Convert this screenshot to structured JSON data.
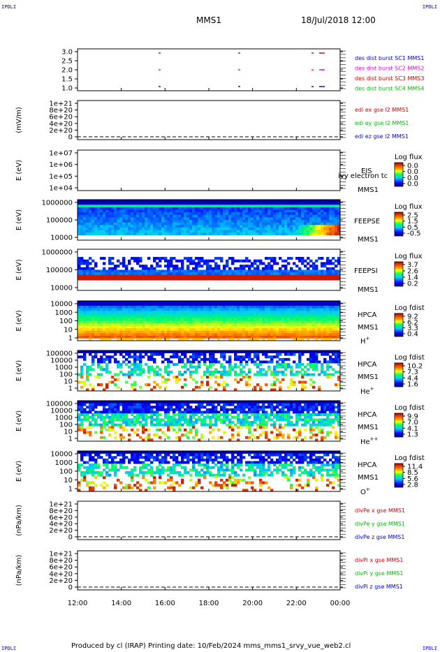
{
  "corner_label": "IPDLI",
  "header": {
    "mission": "MMS1",
    "datetime": "18/Jul/2018 12:00"
  },
  "footer": {
    "text": "Produced by cl (IRAP)   Printing date: 10/Feb/2024   mms_mms1_srvy_vue_web2.cl"
  },
  "time_axis": {
    "ticks": [
      "12:00",
      "14:00",
      "16:00",
      "18:00",
      "20:00",
      "22:00",
      "00:00"
    ]
  },
  "colors": {
    "red": "#cc0000",
    "magenta": "#dd00dd",
    "green": "#00bb00",
    "blue": "#0000cc"
  },
  "chart_data": [
    {
      "type": "scatter",
      "ylabel": "",
      "yticks": [
        "3.0",
        "2.5",
        "2.0",
        "1.5",
        "1.0"
      ],
      "legend": [
        {
          "text": "des dist burst SC1 MMS1",
          "color": "blue"
        },
        {
          "text": "des dist burst SC2 MMS2",
          "color": "magenta"
        },
        {
          "text": "des dist burst SC3 MMS3",
          "color": "red"
        },
        {
          "text": "des dist burst SC4 MMS4",
          "color": "green"
        }
      ]
    },
    {
      "type": "line",
      "ylabel": "(mV/m)",
      "yticks": [
        "1e+21",
        "8e+20",
        "6e+20",
        "4e+20",
        "2e+20",
        "0"
      ],
      "legend": [
        {
          "text": "edi ex gse l2 MMS1",
          "color": "red"
        },
        {
          "text": "edi ey gse l2 MMS1",
          "color": "green"
        },
        {
          "text": "edi ez gse l2 MMS1",
          "color": "blue"
        }
      ]
    },
    {
      "type": "heatmap",
      "ylabel": "E (eV)",
      "yticks": [
        "1e+07",
        "1e+06",
        "1e+05",
        "1e+04"
      ],
      "right_labels": [
        "EIS",
        "MMS1"
      ],
      "overlay": "ivy electron tc",
      "cbar_title": "Log flux",
      "cbar_ticks": [
        "0.0",
        "0.0",
        "0.0",
        "0.0"
      ]
    },
    {
      "type": "heatmap",
      "ylabel": "E (eV)",
      "yticks": [
        "1000000",
        "100000",
        "10000"
      ],
      "right_labels": [
        "FEEPSE",
        "MMS1"
      ],
      "cbar_title": "Log flux",
      "cbar_ticks": [
        "2.5",
        "1.5",
        "0.5",
        "-0.5"
      ]
    },
    {
      "type": "heatmap",
      "ylabel": "E (eV)",
      "yticks": [
        "1000000",
        "100000",
        "10000"
      ],
      "right_labels": [
        "FEEPSI",
        "MMS1"
      ],
      "cbar_title": "Log flux",
      "cbar_ticks": [
        "3.7",
        "2.6",
        "1.4",
        "0.2"
      ]
    },
    {
      "type": "heatmap",
      "ylabel": "E (eV)",
      "yticks": [
        "10000",
        "1000",
        "100",
        "10",
        "1"
      ],
      "right_labels": [
        "HPCA",
        "MMS1"
      ],
      "species": "H",
      "species_sup": "+",
      "cbar_title": "Log fdist",
      "cbar_ticks": [
        "9.2",
        "6.2",
        "3.3",
        "0.4"
      ]
    },
    {
      "type": "heatmap",
      "ylabel": "E (eV)",
      "yticks": [
        "100000",
        "10000",
        "1000",
        "100",
        "10",
        "1"
      ],
      "right_labels": [
        "HPCA",
        "MMS1"
      ],
      "species": "He",
      "species_sup": "+",
      "cbar_title": "Log fdist",
      "cbar_ticks": [
        "10.2",
        "7.3",
        "4.4",
        "1.6"
      ]
    },
    {
      "type": "heatmap",
      "ylabel": "E (eV)",
      "yticks": [
        "100000",
        "10000",
        "1000",
        "100",
        "10",
        "1"
      ],
      "right_labels": [
        "HPCA",
        "MMS1"
      ],
      "species": "He",
      "species_sup": "++",
      "cbar_title": "Log fdist",
      "cbar_ticks": [
        "9.9",
        "7.0",
        "4.1",
        "1.3"
      ]
    },
    {
      "type": "heatmap",
      "ylabel": "E (eV)",
      "yticks": [
        "10000",
        "1000",
        "100",
        "10",
        "1"
      ],
      "right_labels": [
        "HPCA",
        "MMS1"
      ],
      "species": "O",
      "species_sup": "+",
      "cbar_title": "Log fdist",
      "cbar_ticks": [
        "11.4",
        "8.5",
        "5.6",
        "2.8"
      ]
    },
    {
      "type": "line",
      "ylabel": "(nPa/km)",
      "yticks": [
        "1e+21",
        "8e+20",
        "6e+20",
        "4e+20",
        "2e+20",
        "0"
      ],
      "legend": [
        {
          "text": "divPe x gse MMS1",
          "color": "red"
        },
        {
          "text": "divPe y gse MMS1",
          "color": "green"
        },
        {
          "text": "divPe z gse MMS1",
          "color": "blue"
        }
      ]
    },
    {
      "type": "line",
      "ylabel": "(nPa/km)",
      "yticks": [
        "1e+21",
        "8e+20",
        "6e+20",
        "4e+20",
        "2e+20",
        "0"
      ],
      "legend": [
        {
          "text": "divPi x gse MMS1",
          "color": "red"
        },
        {
          "text": "divPi y gse MMS1",
          "color": "green"
        },
        {
          "text": "divPi z gse MMS1",
          "color": "blue"
        }
      ]
    }
  ]
}
